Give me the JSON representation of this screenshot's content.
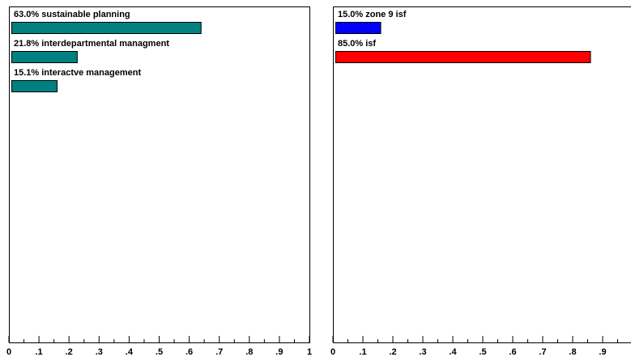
{
  "chart_data": [
    {
      "type": "bar",
      "orientation": "horizontal",
      "xlim": [
        0,
        1
      ],
      "x_ticks": [
        "0",
        ".1",
        ".2",
        ".3",
        ".4",
        ".5",
        ".6",
        ".7",
        ".8",
        ".9",
        "1"
      ],
      "bars": [
        {
          "label": "63.0% sustainable planning",
          "value": 0.63,
          "color": "#008080"
        },
        {
          "label": "21.8% interdepartmental managment",
          "value": 0.218,
          "color": "#008080"
        },
        {
          "label": "15.1% interactve management",
          "value": 0.151,
          "color": "#008080"
        }
      ]
    },
    {
      "type": "bar",
      "orientation": "horizontal",
      "xlim": [
        0,
        1
      ],
      "x_ticks": [
        "0",
        ".1",
        ".2",
        ".3",
        ".4",
        ".5",
        ".6",
        ".7",
        ".8",
        ".9"
      ],
      "bars": [
        {
          "label": "15.0% zone 9 isf",
          "value": 0.15,
          "color": "#0000ff"
        },
        {
          "label": "85.0% isf",
          "value": 0.85,
          "color": "#ff0000"
        }
      ]
    }
  ]
}
